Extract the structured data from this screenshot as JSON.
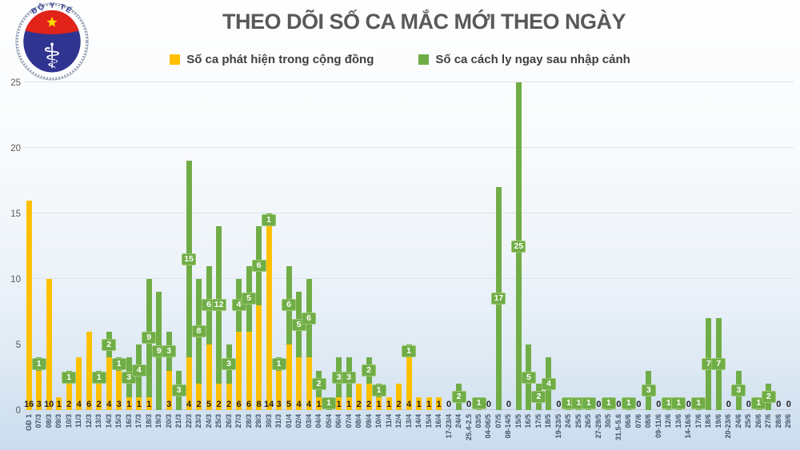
{
  "header": {
    "title": "THEO DÕI SỐ CA MẮC MỚI THEO NGÀY",
    "logo": {
      "top_text": "BỘ Y TẾ",
      "bottom_text": "MINISTRY OF HEALTH"
    }
  },
  "legend": [
    {
      "label": "Số ca phát hiện trong cộng đồng",
      "color": "#FFC000"
    },
    {
      "label": "Số ca cách ly ngay sau nhập cảnh",
      "color": "#70AD47"
    }
  ],
  "colors": {
    "community": "#FFC000",
    "imported": "#70AD47",
    "imported_label_border": "#9CC873",
    "grid": "#DDE3E9",
    "axis_text": "#595959",
    "value_label": "#1F1F1F",
    "x_label": "#44546A",
    "logo_navy": "#2F3490",
    "logo_red": "#E2231A",
    "logo_star": "#FFDE00"
  },
  "chart_data": {
    "type": "bar",
    "stacked": true,
    "title": "THEO DÕI SỐ CA MẮC MỚI THEO NGÀY",
    "xlabel": "",
    "ylabel": "",
    "ylim": [
      0,
      25
    ],
    "yticks": [
      0,
      5,
      10,
      15,
      20,
      25
    ],
    "grid": true,
    "legend_position": "top",
    "categories": [
      "GĐ 1",
      "07/3",
      "08/3",
      "09/3",
      "10/3",
      "11/3",
      "12/3",
      "13/3",
      "14/3",
      "15/3",
      "16/3",
      "17/3",
      "18/3",
      "19/3",
      "20/3",
      "21/3",
      "22/3",
      "23/3",
      "24/3",
      "25/3",
      "26/3",
      "27/3",
      "28/3",
      "29/3",
      "30/3",
      "31/3",
      "01/4",
      "02/4",
      "03/4",
      "04/4",
      "05/4",
      "06/4",
      "07/4",
      "08/4",
      "09/4",
      "10/4",
      "11/4",
      "12/4",
      "13/4",
      "14/4",
      "15/4",
      "16/4",
      "17-23/4",
      "24/4",
      "25.4-2.5",
      "03/5",
      "04-06/5",
      "07/5",
      "08-14/5",
      "15/5",
      "16/5",
      "17/5",
      "18/5",
      "19-23/5",
      "24/5",
      "25/5",
      "26/5",
      "27-29/5",
      "30/5",
      "31.5-5.6",
      "06/6",
      "07/6",
      "08/6",
      "09-11/6",
      "12/6",
      "13/6",
      "14-16/6",
      "17/6",
      "18/6",
      "19/6",
      "20-23/6",
      "24/6",
      "25/5",
      "26/6",
      "27/6",
      "28/6",
      "29/6"
    ],
    "series": [
      {
        "name": "Số ca phát hiện trong cộng đồng",
        "color": "#FFC000",
        "values": [
          16,
          3,
          10,
          1,
          2,
          4,
          6,
          2,
          4,
          3,
          1,
          1,
          1,
          0,
          3,
          0,
          4,
          2,
          5,
          2,
          2,
          6,
          6,
          8,
          14,
          3,
          5,
          4,
          4,
          1,
          0,
          1,
          1,
          2,
          2,
          1,
          1,
          2,
          4,
          1,
          1,
          1,
          0,
          0,
          0,
          0,
          0,
          0,
          0,
          0,
          0,
          0,
          0,
          0,
          0,
          0,
          0,
          0,
          0,
          0,
          0,
          0,
          0,
          0,
          0,
          0,
          0,
          0,
          0,
          0,
          0,
          0,
          0,
          0,
          0,
          0,
          0
        ]
      },
      {
        "name": "Số ca cách ly ngay sau nhập cảnh",
        "color": "#70AD47",
        "values": [
          0,
          1,
          0,
          0,
          1,
          0,
          0,
          1,
          2,
          1,
          3,
          4,
          9,
          9,
          3,
          3,
          15,
          8,
          6,
          12,
          3,
          4,
          5,
          6,
          1,
          1,
          6,
          5,
          6,
          2,
          1,
          3,
          3,
          0,
          2,
          1,
          0,
          0,
          1,
          0,
          0,
          0,
          0,
          2,
          0,
          1,
          0,
          17,
          0,
          25,
          5,
          2,
          4,
          0,
          1,
          1,
          1,
          0,
          1,
          0,
          1,
          0,
          3,
          0,
          1,
          1,
          0,
          1,
          7,
          7,
          0,
          3,
          0,
          1,
          2,
          0,
          0
        ]
      }
    ]
  }
}
